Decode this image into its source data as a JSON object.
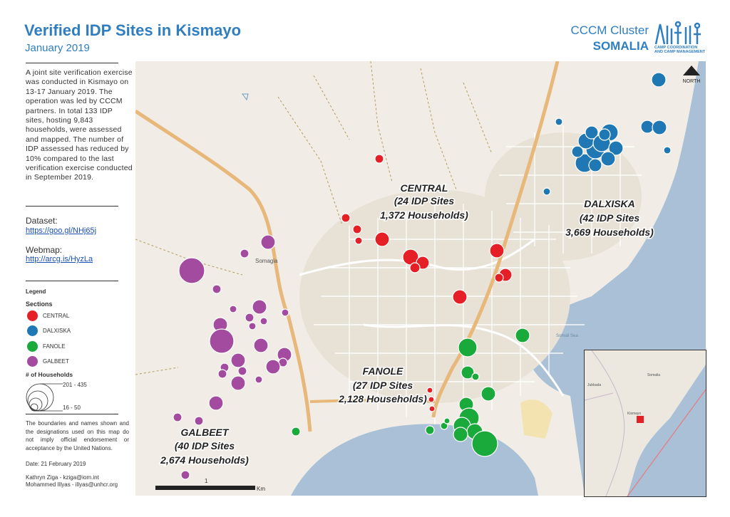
{
  "title": "Verified IDP Sites in Kismayo",
  "subtitle": "January 2019",
  "branding": {
    "cluster": "CCCM Cluster",
    "country": "SOMALIA",
    "logo_line1": "CAMP COORDINATION",
    "logo_line2": "AND CAMP MANAGEMENT"
  },
  "intro": "A joint site verification exercise was conducted in Kismayo on 13-17 January 2019. The operation was led by CCCM partners. In total 133 IDP sites, hosting 9,843 households, were assessed and mapped. The number of IDP assessed has reduced by 10% compared to the last verification exercise conducted in September 2019.",
  "dataset": {
    "label": "Dataset:",
    "link": "https://goo.gl/NHj65j"
  },
  "webmap": {
    "label": "Webmap:",
    "link": "http://arcg.is/HyzLa"
  },
  "legend": {
    "title": "Legend",
    "sections_title": "Sections",
    "sections": [
      {
        "label": "CENTRAL",
        "color": "#e41f26"
      },
      {
        "label": "DALXISKA",
        "color": "#1f78b4"
      },
      {
        "label": "FANOLE",
        "color": "#1aaa3c"
      },
      {
        "label": "GALBEET",
        "color": "#a24b9f"
      }
    ],
    "households_title": "# of Households",
    "size_max": "201 - 435",
    "size_min": "16 - 50"
  },
  "disclaimer": "The boundaries and names shown and the designations used on this map do not imply official endorsement or acceptance by the United Nations.",
  "date": "Date: 21 February 2019",
  "contacts": [
    "Kathryn Ziga - kziga@iom.int",
    "Mohammed Illyas - illyas@unhcr.org"
  ],
  "map": {
    "north_label": "NORTH",
    "place_label": "Somagia",
    "sea_label": "Somali Sea",
    "section_labels": [
      {
        "name": "CENTRAL",
        "sites": "(24 IDP Sites",
        "households": "1,372 Households)"
      },
      {
        "name": "DALXISKA",
        "sites": "(42 IDP Sites",
        "households": "3,669 Households)"
      },
      {
        "name": "FANOLE",
        "sites": "(27 IDP Sites",
        "households": "2,128 Households)"
      },
      {
        "name": "GALBEET",
        "sites": "(40 IDP Sites",
        "households": "2,674 Households)"
      }
    ],
    "scale_one": "1",
    "scale_unit": "Km"
  },
  "inset": {
    "label1": "Somalia",
    "label2": "Kismayo",
    "label3": "Jubbada"
  }
}
